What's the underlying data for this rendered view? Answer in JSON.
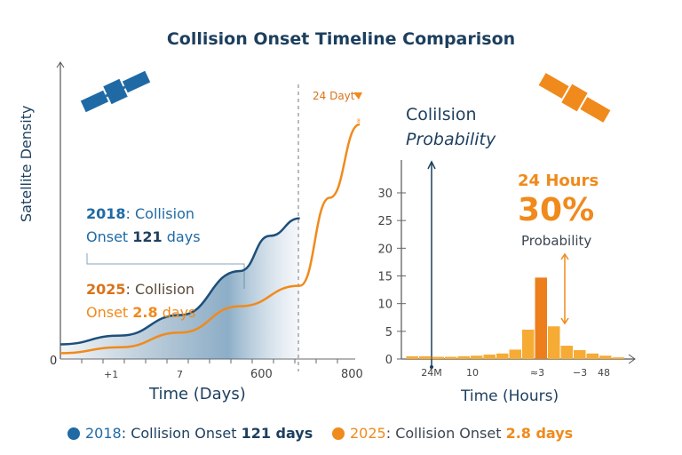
{
  "title": "Collision Onset Timeline Comparison",
  "colors": {
    "blue": "#1f6aa5",
    "orange": "#f08a1c",
    "navy": "#1d3f5e"
  },
  "icons": [
    "satellite-icon-blue",
    "satellite-icon-orange"
  ],
  "chart_data": [
    {
      "type": "line",
      "ylabel": "Satellite Density",
      "xlabel": "Time (Days)",
      "x_tick_labels": [
        "+1",
        "7",
        "600",
        "800"
      ],
      "y_tick_labels": [
        "0"
      ],
      "marker_label": "24 Dayt",
      "marker_small": "8",
      "annotations": {
        "a2018": {
          "year": "2018",
          "text1": ": Collision",
          "text2": "Onset ",
          "value": "121",
          "unit": " days"
        },
        "a2025": {
          "year": "2025",
          "text1": ": Collision",
          "text2": "Onset ",
          "value": "2.8",
          "unit": " days"
        }
      },
      "series": [
        {
          "name": "2018",
          "color": "#1d4f7a",
          "x": [
            0,
            20,
            40,
            60,
            70,
            80
          ],
          "y": [
            5,
            8,
            15,
            30,
            42,
            48
          ]
        },
        {
          "name": "2025",
          "color": "#f08a1c",
          "x": [
            0,
            20,
            40,
            60,
            80,
            90,
            100
          ],
          "y": [
            2,
            4,
            9,
            18,
            25,
            55,
            80
          ]
        }
      ]
    },
    {
      "type": "bar",
      "title_line1": "Colilsion",
      "title_line2": "Probability",
      "xlabel": "Time (Hours)",
      "ylim": [
        0,
        30
      ],
      "y_ticks": [
        0,
        5,
        10,
        15,
        20,
        25,
        30
      ],
      "x_tick_labels": [
        "24M",
        "10",
        "≈3",
        "−3",
        "48"
      ],
      "values": [
        0.5,
        0.5,
        0.4,
        0.4,
        0.5,
        0.6,
        0.8,
        1.0,
        1.7,
        5.3,
        14.7,
        5.9,
        2.4,
        1.6,
        1.0,
        0.6,
        0.3
      ],
      "highlight_index": 10,
      "callout": {
        "hours": "24 Hours",
        "percent": "30%",
        "label": "Probability"
      }
    }
  ],
  "legend": [
    {
      "year": "2018",
      "text": ": Collision Onset ",
      "value": "121 days",
      "color": "#1f6aa5"
    },
    {
      "year": "2025",
      "text": ": Collision Onset ",
      "value": "2.8 days",
      "color": "#f08a1c"
    }
  ]
}
